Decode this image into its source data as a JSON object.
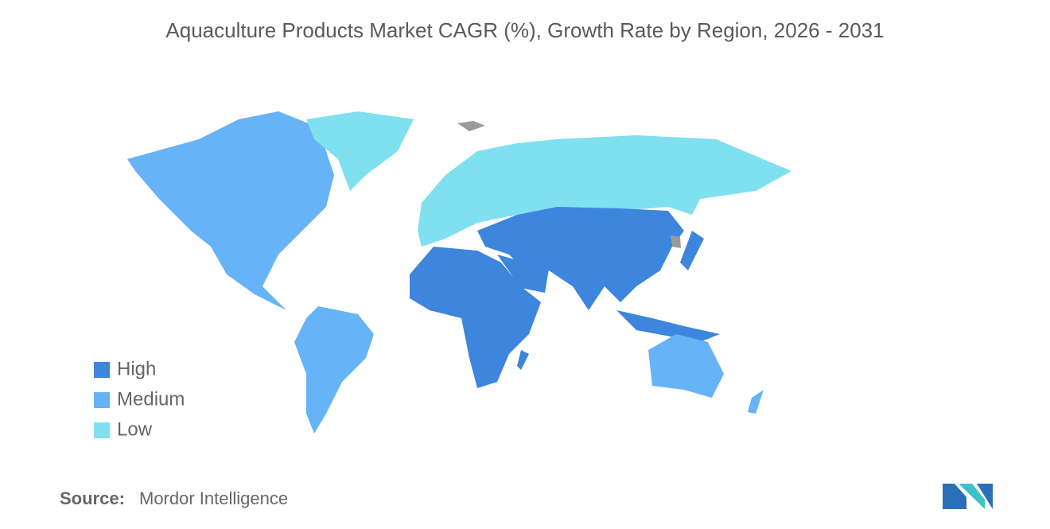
{
  "title": "Aquaculture Products Market CAGR (%), Growth Rate by Region, 2026 - 2031",
  "legend": [
    {
      "label": "High",
      "color": "#3d85dd"
    },
    {
      "label": "Medium",
      "color": "#66b3f7"
    },
    {
      "label": "Low",
      "color": "#7fe0ef"
    }
  ],
  "source": {
    "label": "Source:",
    "text": "Mordor Intelligence"
  }
}
